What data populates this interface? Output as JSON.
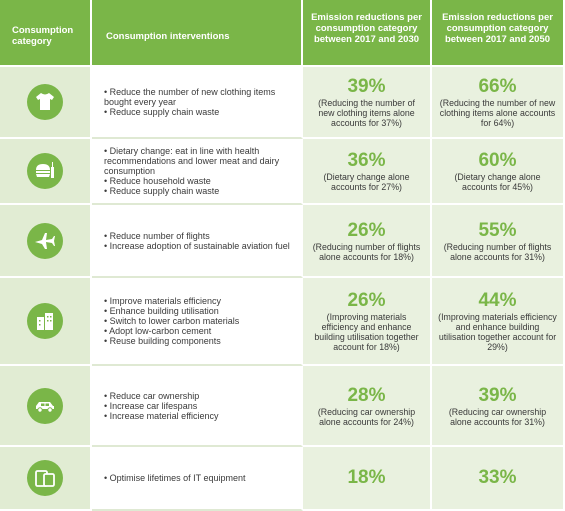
{
  "header": {
    "category": "Consumption category",
    "interventions": "Consumption interventions",
    "em2030": "Emission reductions per consumption category between 2017 and 2030",
    "em2050": "Emission reductions per consumption category between 2017 and 2050"
  },
  "rows": [
    {
      "icon": "clothing-icon",
      "interventions": [
        "Reduce the number of new clothing items bought every year",
        "Reduce supply chain waste"
      ],
      "pct2030": "39%",
      "note2030": "(Reducing the number of new clothing items alone accounts for 37%)",
      "pct2050": "66%",
      "note2050": "(Reducing the number of new clothing items alone accounts for 64%)"
    },
    {
      "icon": "food-icon",
      "interventions": [
        "Dietary change: eat in line with health recommendations and lower meat and dairy consumption",
        "Reduce household waste",
        "Reduce supply chain waste"
      ],
      "pct2030": "36%",
      "note2030": "(Dietary change alone accounts for 27%)",
      "pct2050": "60%",
      "note2050": "(Dietary change alone accounts for 45%)"
    },
    {
      "icon": "airplane-icon",
      "interventions": [
        "Reduce number of flights",
        "Increase adoption of sustainable aviation fuel"
      ],
      "pct2030": "26%",
      "note2030": "(Reducing number of flights alone accounts for 18%)",
      "pct2050": "55%",
      "note2050": "(Reducing number of flights alone accounts for 31%)"
    },
    {
      "icon": "buildings-icon",
      "interventions": [
        "Improve materials efficiency",
        "Enhance building utilisation",
        "Switch to lower carbon materials",
        "Adopt low-carbon cement",
        "Reuse building components"
      ],
      "pct2030": "26%",
      "note2030": "(Improving materials efficiency and enhance building utilisation together account for 18%)",
      "pct2050": "44%",
      "note2050": "(Improving materials efficiency and enhance building utilisation together account for 29%)"
    },
    {
      "icon": "car-icon",
      "interventions": [
        "Reduce car ownership",
        "Increase car lifespans",
        "Increase material efficiency"
      ],
      "pct2030": "28%",
      "note2030": "(Reducing car ownership alone accounts for 24%)",
      "pct2050": "39%",
      "note2050": "(Reducing car ownership alone accounts for 31%)"
    },
    {
      "icon": "devices-icon",
      "interventions": [
        "Optimise lifetimes of IT equipment"
      ],
      "pct2030": "18%",
      "note2030": "",
      "pct2050": "33%",
      "note2050": ""
    }
  ]
}
